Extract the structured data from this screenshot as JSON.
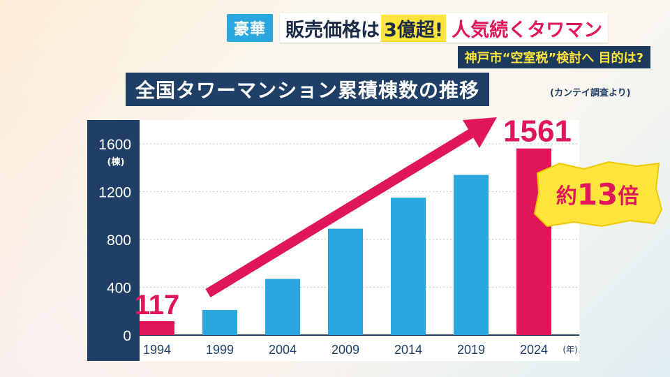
{
  "headline": {
    "tag": "豪華",
    "part1": "販売価格は",
    "highlight": "3億超!",
    "part2": "人気続くタワマン"
  },
  "subheadline": "神戸市“空室税”検討へ 目的は?",
  "chart_title": "全国タワーマンション累積棟数の推移",
  "source": "(カンテイ調査より)",
  "callout": {
    "prefix": "約",
    "number": "13",
    "suffix": "倍"
  },
  "colors": {
    "bar_blue": "#2aa7de",
    "bar_red": "#e0155a",
    "navy": "#1f3f66",
    "callout_yellow": "#ffe53b"
  },
  "chart_data": {
    "type": "bar",
    "title": "全国タワーマンション累積棟数の推移",
    "categories": [
      "1994",
      "1999",
      "2004",
      "2009",
      "2014",
      "2019",
      "2024"
    ],
    "values": [
      117,
      210,
      470,
      890,
      1150,
      1340,
      1561
    ],
    "highlight_indices": [
      0,
      6
    ],
    "value_labels": {
      "0": "117",
      "6": "1561"
    },
    "yticks": [
      "0",
      "400",
      "800",
      "1200",
      "1600"
    ],
    "ylim": [
      0,
      1600
    ],
    "ylabel": "(棟)",
    "xlabel": "(年)",
    "grid": true
  }
}
